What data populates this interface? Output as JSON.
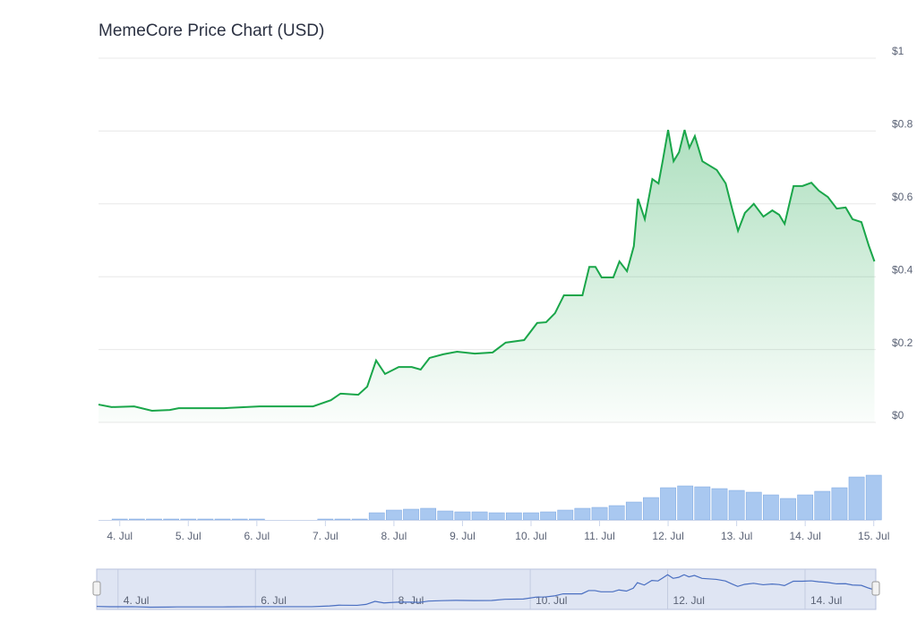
{
  "chart_data": [
    {
      "type": "line",
      "title": "MemeCore Price Chart (USD)",
      "x": [
        3.69,
        3.88,
        4.21,
        4.47,
        4.73,
        4.86,
        5.52,
        6.04,
        6.82,
        7.08,
        7.22,
        7.48,
        7.61,
        7.74,
        7.87,
        8.07,
        8.26,
        8.39,
        8.52,
        8.72,
        8.92,
        9.18,
        9.44,
        9.63,
        9.9,
        10.09,
        10.22,
        10.35,
        10.48,
        10.75,
        10.85,
        10.94,
        11.03,
        11.2,
        11.29,
        11.4,
        11.5,
        11.56,
        11.66,
        11.77,
        11.86,
        11.92,
        12.0,
        12.08,
        12.16,
        12.24,
        12.31,
        12.39,
        12.5,
        12.71,
        12.84,
        12.94,
        13.02,
        13.12,
        13.25,
        13.39,
        13.52,
        13.62,
        13.7,
        13.83,
        13.96,
        14.09,
        14.2,
        14.33,
        14.46,
        14.59,
        14.69,
        14.82,
        14.93,
        15.01
      ],
      "series": [
        {
          "color": "#1aa64a",
          "values": [
            0.049,
            0.042,
            0.044,
            0.032,
            0.034,
            0.039,
            0.039,
            0.044,
            0.044,
            0.061,
            0.079,
            0.076,
            0.098,
            0.17,
            0.133,
            0.152,
            0.152,
            0.145,
            0.177,
            0.187,
            0.194,
            0.189,
            0.192,
            0.219,
            0.226,
            0.273,
            0.275,
            0.3,
            0.349,
            0.349,
            0.427,
            0.427,
            0.398,
            0.398,
            0.442,
            0.415,
            0.484,
            0.614,
            0.558,
            0.668,
            0.656,
            0.717,
            0.803,
            0.717,
            0.742,
            0.803,
            0.754,
            0.786,
            0.717,
            0.693,
            0.656,
            0.582,
            0.526,
            0.575,
            0.6,
            0.565,
            0.582,
            0.57,
            0.545,
            0.649,
            0.649,
            0.658,
            0.636,
            0.619,
            0.587,
            0.59,
            0.558,
            0.55,
            0.484,
            0.442
          ]
        }
      ],
      "xlim": [
        3.69,
        15.03
      ],
      "xticks": [
        {
          "value": 4,
          "label": "4. Jul"
        },
        {
          "value": 5,
          "label": "5. Jul"
        },
        {
          "value": 6,
          "label": "6. Jul"
        },
        {
          "value": 7,
          "label": "7. Jul"
        },
        {
          "value": 8,
          "label": "8. Jul"
        },
        {
          "value": 9,
          "label": "9. Jul"
        },
        {
          "value": 10,
          "label": "10. Jul"
        },
        {
          "value": 11,
          "label": "11. Jul"
        },
        {
          "value": 12,
          "label": "12. Jul"
        },
        {
          "value": 13,
          "label": "13. Jul"
        },
        {
          "value": 14,
          "label": "14. Jul"
        },
        {
          "value": 15,
          "label": "15. Jul"
        }
      ],
      "ylim": [
        0,
        1
      ],
      "yticks": [
        {
          "value": 0,
          "label": "$0"
        },
        {
          "value": 0.2,
          "label": "$0.2"
        },
        {
          "value": 0.4,
          "label": "$0.4"
        },
        {
          "value": 0.6,
          "label": "$0.6"
        },
        {
          "value": 0.8,
          "label": "$0.8"
        },
        {
          "value": 1,
          "label": "$1"
        }
      ],
      "grid": true
    },
    {
      "type": "bar",
      "color": "#a9c8f0",
      "x": [
        3.75,
        4,
        4.25,
        4.5,
        4.75,
        5,
        5.25,
        5.5,
        5.75,
        6,
        6.25,
        6.5,
        6.75,
        7,
        7.25,
        7.5,
        7.75,
        8,
        8.25,
        8.5,
        8.75,
        9,
        9.25,
        9.5,
        9.75,
        10,
        10.25,
        10.5,
        10.75,
        11,
        11.25,
        11.5,
        11.75,
        12,
        12.25,
        12.5,
        12.75,
        13,
        13.25,
        13.5,
        13.75,
        14,
        14.25,
        14.5,
        14.75,
        15
      ],
      "values": [
        0,
        1,
        1,
        1,
        1,
        1,
        1,
        1,
        1,
        1,
        0,
        0,
        0,
        1,
        1,
        1,
        8,
        11,
        12,
        13,
        10,
        9,
        9,
        8,
        8,
        8,
        9,
        11,
        13,
        14,
        16,
        20,
        25,
        36,
        38,
        37,
        35,
        33,
        31,
        28,
        24,
        28,
        32,
        36,
        48,
        50
      ],
      "ylim": [
        0,
        60
      ]
    }
  ],
  "navigator": {
    "color": "#4a6fc1",
    "xticks": [
      {
        "value": 4,
        "label": "4. Jul"
      },
      {
        "value": 6,
        "label": "6. Jul"
      },
      {
        "value": 8,
        "label": "8. Jul"
      },
      {
        "value": 10,
        "label": "10. Jul"
      },
      {
        "value": 12,
        "label": "12. Jul"
      },
      {
        "value": 14,
        "label": "14. Jul"
      }
    ]
  }
}
